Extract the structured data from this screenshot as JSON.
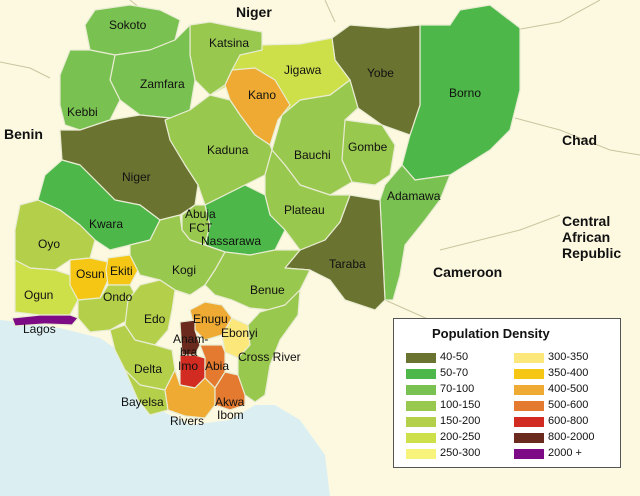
{
  "countries": {
    "niger": "Niger",
    "benin": "Benin",
    "chad": "Chad",
    "car_line1": "Central",
    "car_line2": "African",
    "car_line3": "Republic",
    "cameroon": "Cameroon"
  },
  "states": {
    "sokoto": "Sokoto",
    "katsina": "Katsina",
    "zamfara": "Zamfara",
    "jigawa": "Jigawa",
    "yobe": "Yobe",
    "kano": "Kano",
    "borno": "Borno",
    "kebbi": "Kebbi",
    "gombe": "Gombe",
    "kaduna": "Kaduna",
    "bauchi": "Bauchi",
    "niger_state": "Niger",
    "adamawa": "Adamawa",
    "abuja": "Abuja",
    "fct": "FCT",
    "plateau": "Plateau",
    "kwara": "Kwara",
    "oyo": "Oyo",
    "nassarawa": "Nassarawa",
    "taraba": "Taraba",
    "osun": "Osun",
    "ekiti": "Ekiti",
    "kogi": "Kogi",
    "ogun": "Ogun",
    "ondo": "Ondo",
    "benue": "Benue",
    "lagos": "Lagos",
    "edo": "Edo",
    "enugu": "Enugu",
    "ebonyi": "Ebonyi",
    "anambra": "Anam-",
    "anambra2": "bra",
    "imo": "Imo",
    "abia": "Abia",
    "cross_river": "Cross River",
    "delta": "Delta",
    "bayelsa": "Bayelsa",
    "akwa": "Akwa",
    "ibom": "Ibom",
    "rivers": "Rivers"
  },
  "legend": {
    "title": "Population Density",
    "items": [
      {
        "label": "40-50",
        "color": "#6b7330"
      },
      {
        "label": "50-70",
        "color": "#4db849"
      },
      {
        "label": "70-100",
        "color": "#79c150"
      },
      {
        "label": "100-150",
        "color": "#99c84e"
      },
      {
        "label": "150-200",
        "color": "#b4d04a"
      },
      {
        "label": "200-250",
        "color": "#cde04a"
      },
      {
        "label": "250-300",
        "color": "#f7f37b"
      },
      {
        "label": "300-350",
        "color": "#fce87a"
      },
      {
        "label": "350-400",
        "color": "#f5c714"
      },
      {
        "label": "400-500",
        "color": "#eeaa32"
      },
      {
        "label": "500-600",
        "color": "#e37a30"
      },
      {
        "label": "600-800",
        "color": "#d12b22"
      },
      {
        "label": "800-2000",
        "color": "#6b2a1e"
      },
      {
        "label": "2000 +",
        "color": "#7d0b86"
      }
    ]
  },
  "colors": {
    "land_background": "#fdf9e0",
    "ocean": "#dbeff2",
    "border_line": "#c8c6a0"
  }
}
